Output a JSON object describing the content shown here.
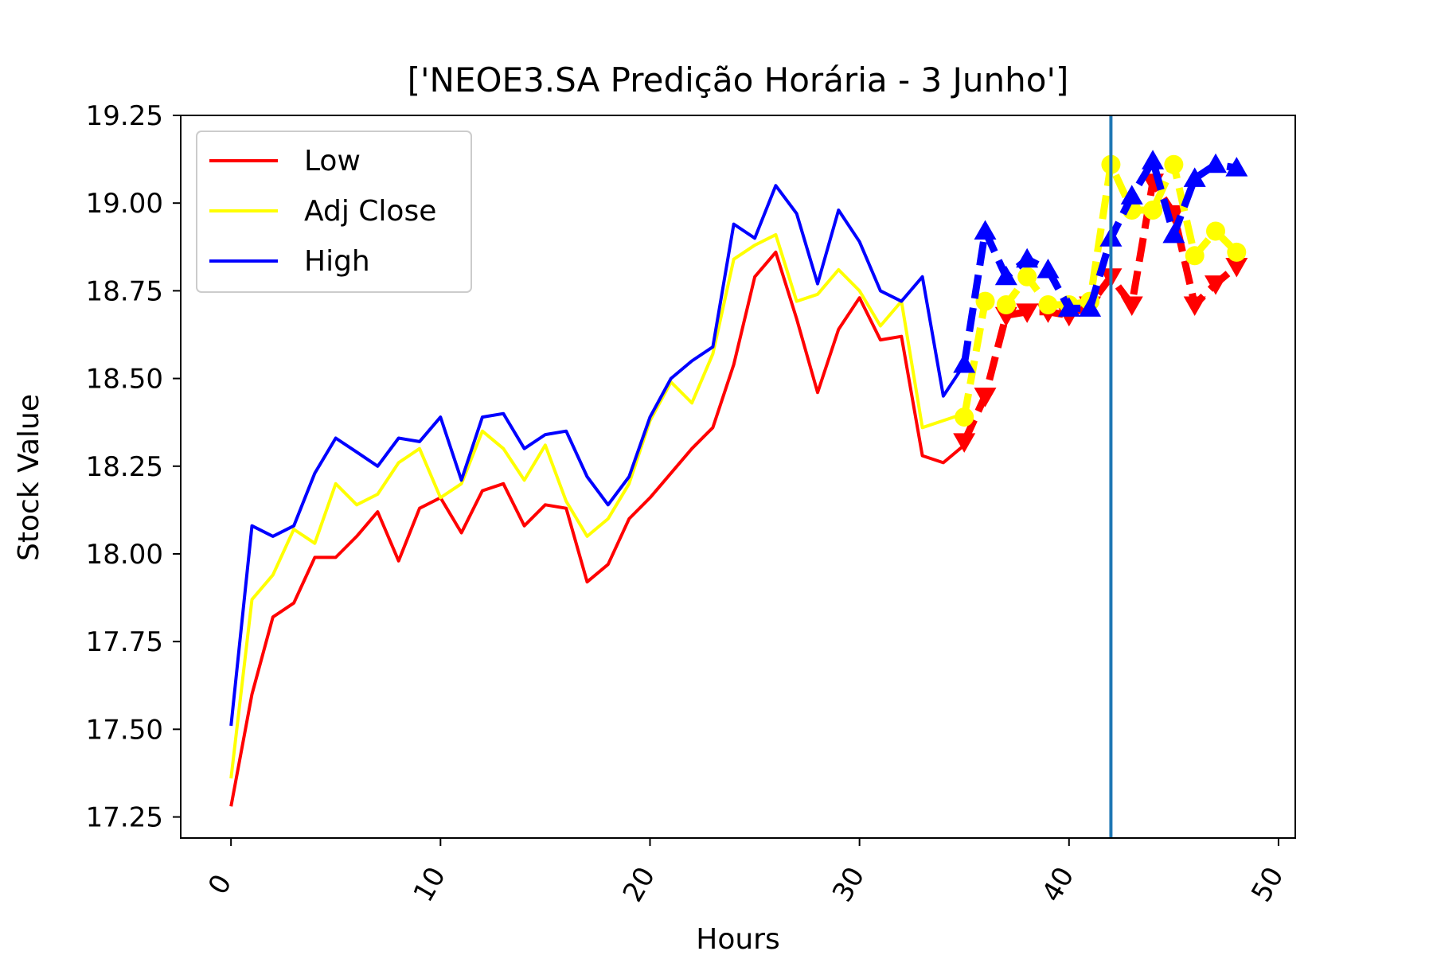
{
  "chart_data": {
    "type": "line",
    "title": "['NEOE3.SA Predição Horária - 3 Junho']",
    "xlabel": "Hours",
    "ylabel": "Stock Value",
    "xlim": [
      -2.4,
      50.8
    ],
    "ylim": [
      17.19,
      19.25
    ],
    "x_ticks": [
      0,
      10,
      20,
      30,
      40,
      50
    ],
    "x_tick_labels": [
      "0",
      "10",
      "20",
      "30",
      "40",
      "50"
    ],
    "y_ticks": [
      17.25,
      17.5,
      17.75,
      18.0,
      18.25,
      18.5,
      18.75,
      19.0,
      19.25
    ],
    "y_tick_labels": [
      "17.25",
      "17.50",
      "17.75",
      "18.00",
      "18.25",
      "18.50",
      "18.75",
      "19.00",
      "19.25"
    ],
    "grid": false,
    "legend_position": "upper-left",
    "vline_x": 42,
    "vline_color": "#1f77b4",
    "series": [
      {
        "name": "Low",
        "color": "#ff0000",
        "x": [
          0,
          1,
          2,
          3,
          4,
          5,
          6,
          7,
          8,
          9,
          10,
          11,
          12,
          13,
          14,
          15,
          16,
          17,
          18,
          19,
          20,
          21,
          22,
          23,
          24,
          25,
          26,
          27,
          28,
          29,
          30,
          31,
          32,
          33,
          34,
          35
        ],
        "values": [
          17.28,
          17.6,
          17.82,
          17.86,
          17.99,
          17.99,
          18.05,
          18.12,
          17.98,
          18.13,
          18.16,
          18.06,
          18.18,
          18.2,
          18.08,
          18.14,
          18.13,
          17.92,
          17.97,
          18.1,
          18.16,
          18.23,
          18.3,
          18.36,
          18.54,
          18.79,
          18.86,
          18.67,
          18.46,
          18.64,
          18.73,
          18.61,
          18.62,
          18.28,
          18.26,
          18.31
        ]
      },
      {
        "name": "Adj Close",
        "color": "#ffff00",
        "x": [
          0,
          1,
          2,
          3,
          4,
          5,
          6,
          7,
          8,
          9,
          10,
          11,
          12,
          13,
          14,
          15,
          16,
          17,
          18,
          19,
          20,
          21,
          22,
          23,
          24,
          25,
          26,
          27,
          28,
          29,
          30,
          31,
          32,
          33,
          34,
          35
        ],
        "values": [
          17.36,
          17.87,
          17.94,
          18.07,
          18.03,
          18.2,
          18.14,
          18.17,
          18.26,
          18.3,
          18.16,
          18.2,
          18.35,
          18.3,
          18.21,
          18.31,
          18.15,
          18.05,
          18.1,
          18.2,
          18.38,
          18.49,
          18.43,
          18.57,
          18.84,
          18.88,
          18.91,
          18.72,
          18.74,
          18.81,
          18.75,
          18.65,
          18.72,
          18.36,
          18.38,
          18.4
        ]
      },
      {
        "name": "High",
        "color": "#0000ff",
        "x": [
          0,
          1,
          2,
          3,
          4,
          5,
          6,
          7,
          8,
          9,
          10,
          11,
          12,
          13,
          14,
          15,
          16,
          17,
          18,
          19,
          20,
          21,
          22,
          23,
          24,
          25,
          26,
          27,
          28,
          29,
          30,
          31,
          32,
          33,
          34,
          35
        ],
        "values": [
          17.51,
          18.08,
          18.05,
          18.08,
          18.23,
          18.33,
          18.29,
          18.25,
          18.33,
          18.32,
          18.39,
          18.21,
          18.39,
          18.4,
          18.3,
          18.34,
          18.35,
          18.22,
          18.14,
          18.22,
          18.39,
          18.5,
          18.55,
          18.59,
          18.94,
          18.9,
          19.05,
          18.97,
          18.77,
          18.98,
          18.89,
          18.75,
          18.72,
          18.79,
          18.45,
          18.54
        ]
      }
    ],
    "prediction_series": [
      {
        "name": "Low",
        "color": "#ff0000",
        "marker": "triangle-down",
        "x": [
          35,
          36,
          37,
          38,
          39,
          40,
          41,
          42,
          43,
          44,
          45,
          46,
          47,
          48
        ],
        "values": [
          18.32,
          18.45,
          18.68,
          18.69,
          18.69,
          18.68,
          18.71,
          18.79,
          18.71,
          19.06,
          18.97,
          18.71,
          18.77,
          18.82
        ]
      },
      {
        "name": "Adj Close",
        "color": "#ffff00",
        "marker": "circle",
        "x": [
          35,
          36,
          37,
          38,
          39,
          40,
          41,
          42,
          43,
          44,
          45,
          46,
          47,
          48
        ],
        "values": [
          18.39,
          18.72,
          18.71,
          18.79,
          18.71,
          18.71,
          18.72,
          19.11,
          18.98,
          18.98,
          19.11,
          18.85,
          18.92,
          18.86
        ]
      },
      {
        "name": "High",
        "color": "#0000ff",
        "marker": "triangle-up",
        "x": [
          35,
          36,
          37,
          38,
          39,
          40,
          41,
          42,
          43,
          44,
          45,
          46,
          47,
          48
        ],
        "values": [
          18.54,
          18.92,
          18.79,
          18.84,
          18.81,
          18.7,
          18.7,
          18.9,
          19.02,
          19.12,
          18.91,
          19.07,
          19.11,
          19.1
        ]
      }
    ]
  }
}
